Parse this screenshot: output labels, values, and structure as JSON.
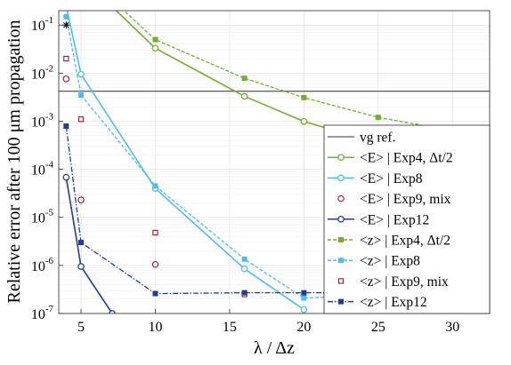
{
  "chart_data": {
    "type": "line",
    "xlabel": "λ / Δz",
    "ylabel": "Relative error after 100 μm propagation",
    "xlim": [
      3.5,
      32.5
    ],
    "ylim_log10": [
      -7,
      -0.7
    ],
    "y_scale": "log",
    "grid": true,
    "legend_position": "right",
    "x_ticks": [
      5,
      10,
      15,
      20,
      25,
      30
    ],
    "y_ticks": [
      {
        "exp": -7,
        "label": "10",
        "sup": "-7"
      },
      {
        "exp": -6,
        "label": "10",
        "sup": "-6"
      },
      {
        "exp": -5,
        "label": "10",
        "sup": "-5"
      },
      {
        "exp": -4,
        "label": "10",
        "sup": "-4"
      },
      {
        "exp": -3,
        "label": "10",
        "sup": "-3"
      },
      {
        "exp": -2,
        "label": "10",
        "sup": "-2"
      },
      {
        "exp": -1,
        "label": "10",
        "sup": "-1"
      }
    ],
    "series": [
      {
        "name": "vg ref.",
        "color": "#333333",
        "style": "hline",
        "y": 0.0042
      },
      {
        "name": "<E> | Exp4, Δt/2",
        "color": "#77ac30",
        "style": "solid",
        "marker": "circle",
        "x": [
          4,
          10,
          16,
          20,
          25,
          32
        ],
        "y": [
          2.0,
          0.033,
          0.0033,
          0.00099,
          0.00035,
          0.0001
        ]
      },
      {
        "name": "<E> | Exp8",
        "color": "#4dbeee",
        "style": "solid",
        "marker": "circle",
        "x": [
          4,
          5,
          10,
          16,
          20
        ],
        "y": [
          0.25,
          0.0095,
          4e-05,
          8.5e-07,
          1.2e-07
        ]
      },
      {
        "name": "<E> | Exp9, mix",
        "color": "#a2142f",
        "style": "none",
        "marker": "circle-open",
        "x": [
          4,
          5,
          10
        ],
        "y": [
          0.0076,
          2.3e-05,
          1.05e-06
        ]
      },
      {
        "name": "<E> | Exp12",
        "color": "#1f3d99",
        "style": "solid",
        "marker": "circle",
        "x": [
          4,
          5,
          7.1
        ],
        "y": [
          6.8e-05,
          9.5e-07,
          1e-07
        ]
      },
      {
        "name": "<z> | Exp4, Δt/2",
        "color": "#77ac30",
        "style": "dashed",
        "marker": "square",
        "x": [
          4,
          10,
          16,
          20,
          25,
          32
        ],
        "y": [
          2.5,
          0.05,
          0.0078,
          0.0031,
          0.0012,
          0.00049
        ]
      },
      {
        "name": "<z> | Exp8",
        "color": "#4dbeee",
        "style": "dashed",
        "marker": "square",
        "x": [
          4,
          5,
          10,
          16,
          20,
          25,
          32
        ],
        "y": [
          0.15,
          0.0035,
          4.5e-05,
          1.35e-06,
          2.1e-07,
          2.4e-07,
          2.4e-07
        ]
      },
      {
        "name": "<z> | Exp9, mix",
        "color": "#a2142f",
        "style": "none",
        "marker": "square-open",
        "x": [
          4,
          5,
          10,
          16
        ],
        "y": [
          0.02,
          0.0011,
          4.8e-06,
          2.5e-07
        ]
      },
      {
        "name": "<z> | Exp12",
        "color": "#1f3d99",
        "style": "dashdot",
        "marker": "square",
        "x": [
          4,
          5,
          10,
          16,
          20,
          25,
          32
        ],
        "y": [
          0.00079,
          3e-06,
          2.6e-07,
          2.7e-07,
          2.7e-07,
          2.7e-07,
          2.7e-07
        ]
      }
    ],
    "annotations": [
      {
        "x": 4,
        "y": 0.1,
        "marker": "star",
        "color": "#000000"
      }
    ]
  }
}
